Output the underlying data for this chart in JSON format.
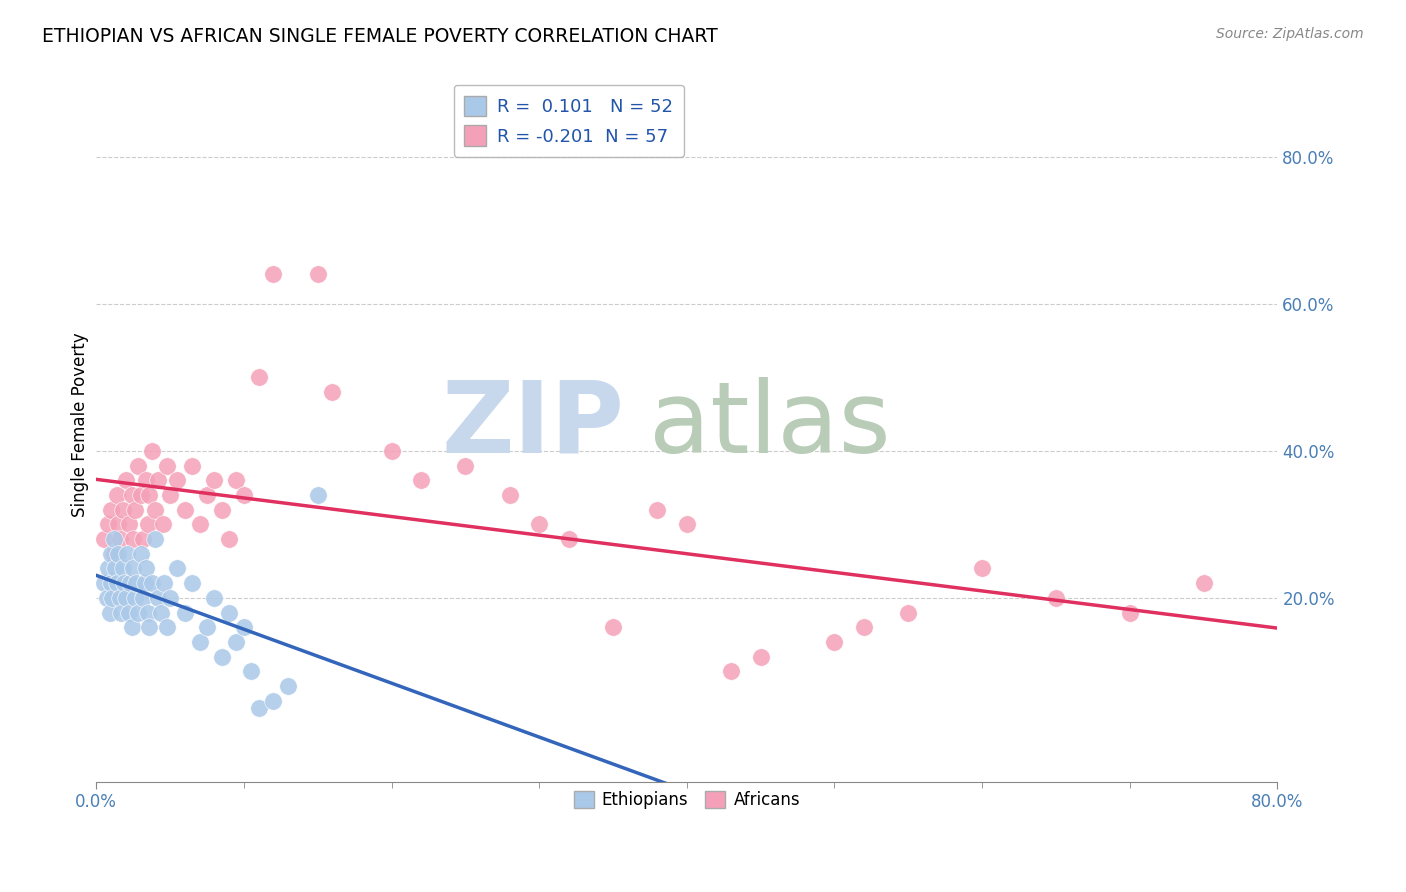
{
  "title": "ETHIOPIAN VS AFRICAN SINGLE FEMALE POVERTY CORRELATION CHART",
  "source": "Source: ZipAtlas.com",
  "ylabel": "Single Female Poverty",
  "xlim": [
    0.0,
    0.8
  ],
  "ylim": [
    -0.05,
    0.92
  ],
  "yticks": [
    0.2,
    0.4,
    0.6,
    0.8
  ],
  "xticks": [
    0.0,
    0.8
  ],
  "blue_R": 0.101,
  "blue_N": 52,
  "pink_R": -0.201,
  "pink_N": 57,
  "background_color": "#ffffff",
  "grid_color": "#cccccc",
  "blue_scatter_color": "#aac8e8",
  "blue_line_color": "#3366bb",
  "pink_scatter_color": "#f4a0b8",
  "pink_line_color": "#e03060",
  "watermark_color_zip": "#c8d8ec",
  "watermark_color_atlas": "#b8ccb8",
  "legend_label_blue": "Ethiopians",
  "legend_label_pink": "Africans",
  "blue_points": [
    [
      0.005,
      0.22
    ],
    [
      0.007,
      0.2
    ],
    [
      0.008,
      0.24
    ],
    [
      0.009,
      0.18
    ],
    [
      0.01,
      0.26
    ],
    [
      0.01,
      0.22
    ],
    [
      0.011,
      0.2
    ],
    [
      0.012,
      0.28
    ],
    [
      0.013,
      0.24
    ],
    [
      0.014,
      0.22
    ],
    [
      0.015,
      0.26
    ],
    [
      0.016,
      0.2
    ],
    [
      0.017,
      0.18
    ],
    [
      0.018,
      0.24
    ],
    [
      0.019,
      0.22
    ],
    [
      0.02,
      0.2
    ],
    [
      0.021,
      0.26
    ],
    [
      0.022,
      0.18
    ],
    [
      0.023,
      0.22
    ],
    [
      0.024,
      0.16
    ],
    [
      0.025,
      0.24
    ],
    [
      0.026,
      0.2
    ],
    [
      0.027,
      0.22
    ],
    [
      0.028,
      0.18
    ],
    [
      0.03,
      0.26
    ],
    [
      0.032,
      0.2
    ],
    [
      0.033,
      0.22
    ],
    [
      0.034,
      0.24
    ],
    [
      0.035,
      0.18
    ],
    [
      0.036,
      0.16
    ],
    [
      0.038,
      0.22
    ],
    [
      0.04,
      0.28
    ],
    [
      0.042,
      0.2
    ],
    [
      0.044,
      0.18
    ],
    [
      0.046,
      0.22
    ],
    [
      0.048,
      0.16
    ],
    [
      0.05,
      0.2
    ],
    [
      0.055,
      0.24
    ],
    [
      0.06,
      0.18
    ],
    [
      0.065,
      0.22
    ],
    [
      0.07,
      0.14
    ],
    [
      0.075,
      0.16
    ],
    [
      0.08,
      0.2
    ],
    [
      0.085,
      0.12
    ],
    [
      0.09,
      0.18
    ],
    [
      0.095,
      0.14
    ],
    [
      0.1,
      0.16
    ],
    [
      0.105,
      0.1
    ],
    [
      0.11,
      0.05
    ],
    [
      0.12,
      0.06
    ],
    [
      0.13,
      0.08
    ],
    [
      0.15,
      0.34
    ]
  ],
  "pink_points": [
    [
      0.005,
      0.28
    ],
    [
      0.008,
      0.3
    ],
    [
      0.01,
      0.32
    ],
    [
      0.012,
      0.26
    ],
    [
      0.014,
      0.34
    ],
    [
      0.015,
      0.3
    ],
    [
      0.016,
      0.28
    ],
    [
      0.018,
      0.32
    ],
    [
      0.02,
      0.36
    ],
    [
      0.022,
      0.3
    ],
    [
      0.024,
      0.34
    ],
    [
      0.025,
      0.28
    ],
    [
      0.026,
      0.32
    ],
    [
      0.028,
      0.38
    ],
    [
      0.03,
      0.34
    ],
    [
      0.032,
      0.28
    ],
    [
      0.034,
      0.36
    ],
    [
      0.035,
      0.3
    ],
    [
      0.036,
      0.34
    ],
    [
      0.038,
      0.4
    ],
    [
      0.04,
      0.32
    ],
    [
      0.042,
      0.36
    ],
    [
      0.045,
      0.3
    ],
    [
      0.048,
      0.38
    ],
    [
      0.05,
      0.34
    ],
    [
      0.055,
      0.36
    ],
    [
      0.06,
      0.32
    ],
    [
      0.065,
      0.38
    ],
    [
      0.07,
      0.3
    ],
    [
      0.075,
      0.34
    ],
    [
      0.08,
      0.36
    ],
    [
      0.085,
      0.32
    ],
    [
      0.09,
      0.28
    ],
    [
      0.095,
      0.36
    ],
    [
      0.1,
      0.34
    ],
    [
      0.11,
      0.5
    ],
    [
      0.12,
      0.64
    ],
    [
      0.15,
      0.64
    ],
    [
      0.16,
      0.48
    ],
    [
      0.2,
      0.4
    ],
    [
      0.22,
      0.36
    ],
    [
      0.25,
      0.38
    ],
    [
      0.28,
      0.34
    ],
    [
      0.3,
      0.3
    ],
    [
      0.32,
      0.28
    ],
    [
      0.35,
      0.16
    ],
    [
      0.38,
      0.32
    ],
    [
      0.4,
      0.3
    ],
    [
      0.43,
      0.1
    ],
    [
      0.45,
      0.12
    ],
    [
      0.5,
      0.14
    ],
    [
      0.52,
      0.16
    ],
    [
      0.55,
      0.18
    ],
    [
      0.6,
      0.24
    ],
    [
      0.65,
      0.2
    ],
    [
      0.7,
      0.18
    ],
    [
      0.75,
      0.22
    ]
  ]
}
